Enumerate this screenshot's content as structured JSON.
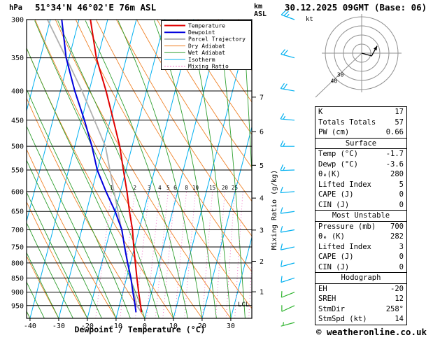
{
  "header": {
    "pressure_unit": "hPa",
    "station": "51°34'N 46°02'E 76m ASL",
    "datetime": "30.12.2025 09GMT (Base: 06)",
    "km_label": "km",
    "asl_label": "ASL"
  },
  "axes": {
    "xlabel": "Dewpoint / Temperature (°C)",
    "mixing_ratio_label": "Mixing Ratio (g/kg)"
  },
  "colors": {
    "temperature": "#e00000",
    "dewpoint": "#0000dd",
    "parcel": "#b0b0b0",
    "dry_adiabat": "#f08228",
    "wet_adiabat": "#30a030",
    "isotherm": "#00b0f0",
    "mixing_ratio": "#f078c8",
    "mixing_ratio_label": "#e028a0",
    "wind_upper": "#00b0f0",
    "wind_lower": "#30b430",
    "hodo_grid": "#909090",
    "axis": "#000000"
  },
  "legend": [
    {
      "label": "Temperature",
      "color": "#e00000",
      "width": 2,
      "style": "solid"
    },
    {
      "label": "Dewpoint",
      "color": "#0000dd",
      "width": 2,
      "style": "solid"
    },
    {
      "label": "Parcel Trajectory",
      "color": "#b0b0b0",
      "width": 2,
      "style": "solid"
    },
    {
      "label": "Dry Adiabat",
      "color": "#f08228",
      "width": 1,
      "style": "solid"
    },
    {
      "label": "Wet Adiabat",
      "color": "#30a030",
      "width": 1,
      "style": "solid"
    },
    {
      "label": "Isotherm",
      "color": "#00b0f0",
      "width": 1,
      "style": "solid"
    },
    {
      "label": "Mixing Ratio",
      "color": "#f078c8",
      "width": 1,
      "style": "dotted"
    }
  ],
  "chart_data": {
    "type": "line",
    "subtype": "skew-t_log-p_sounding",
    "title": "51°34'N 46°02'E 76m ASL",
    "xlabel": "Dewpoint / Temperature (°C)",
    "ylabel": "hPa",
    "pressure_range_hPa": [
      300,
      1000
    ],
    "x_ticks": [
      -40,
      -30,
      -20,
      -10,
      0,
      10,
      20,
      30
    ],
    "pressure_ticks_hPa": [
      300,
      350,
      400,
      450,
      500,
      550,
      600,
      650,
      700,
      750,
      800,
      850,
      900,
      950
    ],
    "km_asl_ticks": [
      1,
      2,
      3,
      4,
      5,
      6,
      7
    ],
    "skew_factor": 0.26,
    "isotherm_step_c": 10,
    "dry_adiabat_step_c": 10,
    "wet_adiabat_step_c": 5,
    "mixing_ratio_labels_g_per_kg": [
      1,
      2,
      3,
      4,
      5,
      6,
      8,
      10,
      15,
      20,
      25
    ],
    "mixing_ratio_extra_lines": [
      30,
      40
    ],
    "lcl": {
      "label": "LCL",
      "pressure_hPa": 945
    },
    "series": {
      "pressure_hPa": [
        976,
        950,
        900,
        850,
        800,
        750,
        700,
        650,
        600,
        550,
        500,
        450,
        400,
        350,
        300
      ],
      "temperature_c": [
        -1.7,
        -2.6,
        -4.5,
        -6.4,
        -8.3,
        -10.3,
        -12.3,
        -15.0,
        -17.7,
        -20.9,
        -24.3,
        -28.9,
        -34.1,
        -40.5,
        -46.0
      ],
      "dewpoint_c": [
        -3.6,
        -4.5,
        -6.5,
        -8.5,
        -11.0,
        -13.5,
        -16.0,
        -20.0,
        -25.0,
        -30.0,
        -34.0,
        -39.0,
        -45.0,
        -51.0,
        -56.0
      ],
      "parcel_c": [
        -1.7,
        -3.9,
        -6.2,
        -8.5,
        -10.9,
        -13.4,
        -16.1,
        -19.0,
        -22.2,
        -25.6,
        -29.3,
        -35.5,
        -42.5,
        -51.0,
        -61.0
      ]
    },
    "winds": [
      {
        "p": 300,
        "dir": 290,
        "spd": 25,
        "low": false
      },
      {
        "p": 350,
        "dir": 285,
        "spd": 20,
        "low": false
      },
      {
        "p": 400,
        "dir": 280,
        "spd": 20,
        "low": false
      },
      {
        "p": 450,
        "dir": 275,
        "spd": 15,
        "low": false
      },
      {
        "p": 500,
        "dir": 270,
        "spd": 15,
        "low": false
      },
      {
        "p": 550,
        "dir": 268,
        "spd": 15,
        "low": false
      },
      {
        "p": 600,
        "dir": 265,
        "spd": 10,
        "low": false
      },
      {
        "p": 650,
        "dir": 262,
        "spd": 10,
        "low": false
      },
      {
        "p": 700,
        "dir": 260,
        "spd": 10,
        "low": false
      },
      {
        "p": 750,
        "dir": 258,
        "spd": 10,
        "low": false
      },
      {
        "p": 800,
        "dir": 255,
        "spd": 10,
        "low": false
      },
      {
        "p": 850,
        "dir": 252,
        "spd": 10,
        "low": false
      },
      {
        "p": 900,
        "dir": 248,
        "spd": 10,
        "low": true
      },
      {
        "p": 950,
        "dir": 245,
        "spd": 10,
        "low": true
      },
      {
        "p": 976,
        "dir": 255,
        "spd": 5,
        "low": true,
        "sfc": true
      }
    ]
  },
  "hodograph": {
    "unit": "kt",
    "rings_kt": [
      10,
      20,
      30,
      40
    ],
    "ring_labels": [
      30,
      40
    ],
    "trace_u_v_kt": [
      [
        0,
        0
      ],
      [
        11,
        -3
      ],
      [
        17,
        8
      ]
    ]
  },
  "table": {
    "sections": [
      {
        "header": null,
        "rows": [
          [
            "K",
            "17"
          ],
          [
            "Totals Totals",
            "57"
          ],
          [
            "PW (cm)",
            "0.66"
          ]
        ]
      },
      {
        "header": "Surface",
        "rows": [
          [
            "Temp (°C)",
            "-1.7"
          ],
          [
            "Dewp (°C)",
            "-3.6"
          ],
          [
            "θₑ(K)",
            "280"
          ],
          [
            "Lifted Index",
            "5"
          ],
          [
            "CAPE (J)",
            "0"
          ],
          [
            "CIN (J)",
            "0"
          ]
        ]
      },
      {
        "header": "Most Unstable",
        "rows": [
          [
            "Pressure (mb)",
            "700"
          ],
          [
            "θₑ (K)",
            "282"
          ],
          [
            "Lifted Index",
            "3"
          ],
          [
            "CAPE (J)",
            "0"
          ],
          [
            "CIN (J)",
            "0"
          ]
        ]
      },
      {
        "header": "Hodograph",
        "rows": [
          [
            "EH",
            "-20"
          ],
          [
            "SREH",
            "12"
          ],
          [
            "StmDir",
            "258°"
          ],
          [
            "StmSpd (kt)",
            "14"
          ]
        ]
      }
    ]
  },
  "footer": {
    "copyright": "© weatheronline.co.uk"
  }
}
